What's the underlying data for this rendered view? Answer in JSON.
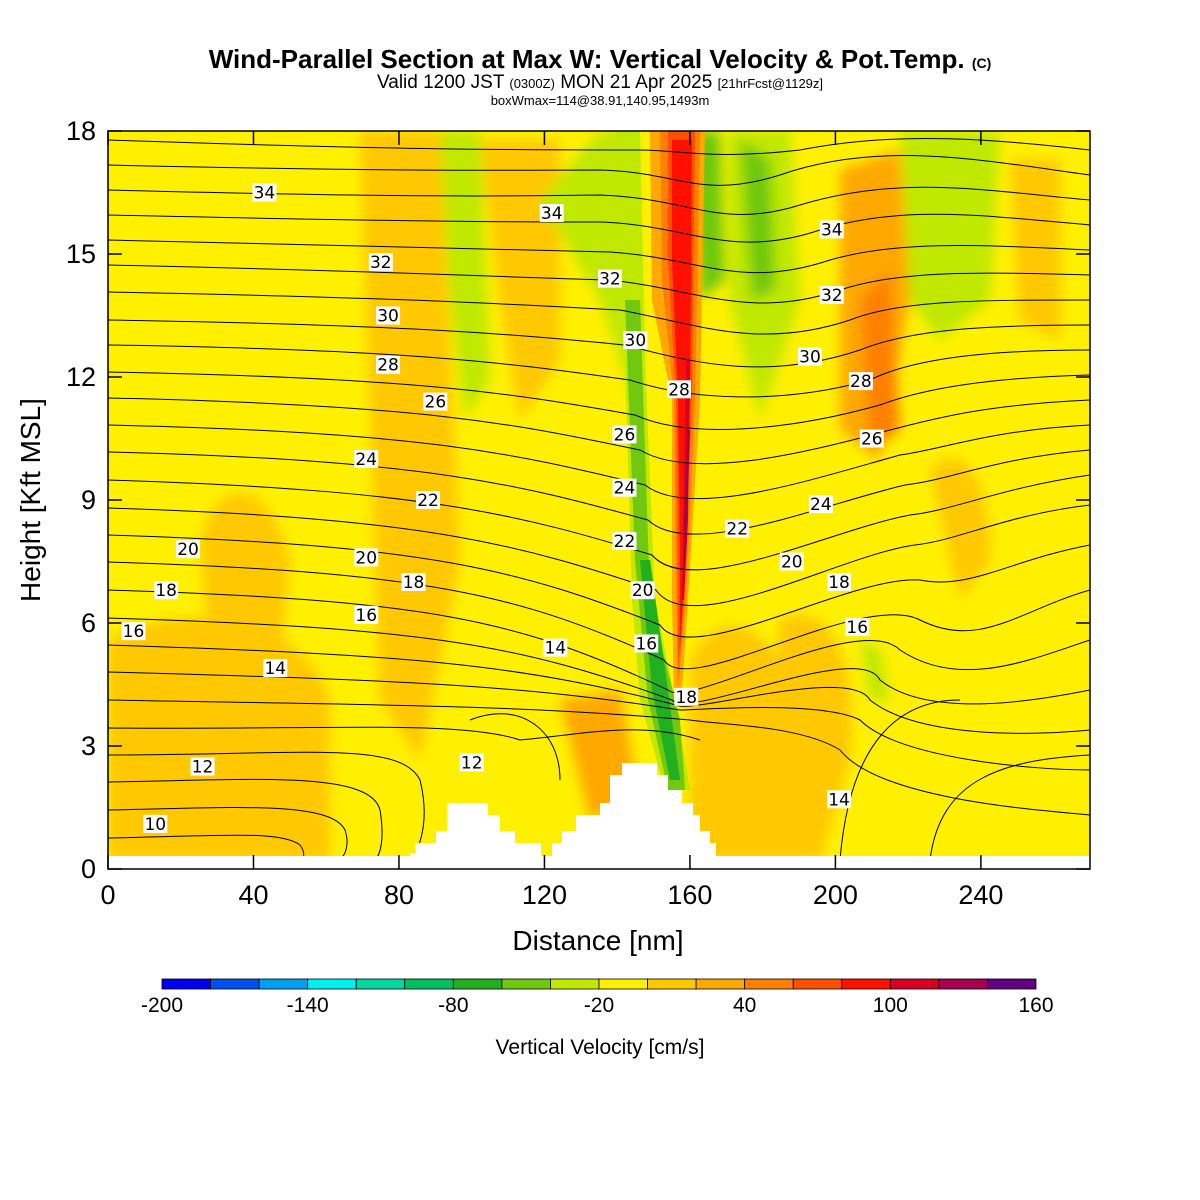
{
  "title": {
    "main": "Wind-Parallel Section at Max W: Vertical Velocity & Pot.Temp.",
    "main_tag": "(C)",
    "valid_prefix": "Valid 1200 JST",
    "valid_utc": "(0300Z)",
    "valid_date": "MON 21 Apr 2025",
    "forecast": "[21hrFcst@1129z]",
    "boxwmax": "boxWmax=114@38.91,140.95,1493m"
  },
  "chart_data": {
    "type": "heatmap",
    "xlabel": "Distance [nm]",
    "ylabel": "Height [Kft MSL]",
    "xlim": [
      0,
      270
    ],
    "ylim": [
      0,
      18
    ],
    "xticks": [
      0,
      40,
      80,
      120,
      160,
      200,
      240
    ],
    "yticks": [
      0,
      3,
      6,
      9,
      12,
      15,
      18
    ],
    "colorbar": {
      "label": "Vertical Velocity [cm/s]",
      "tick_labels": [
        -200,
        -140,
        -80,
        -20,
        40,
        100,
        160
      ],
      "bounds": [
        -200,
        -180,
        -160,
        -140,
        -120,
        -100,
        -80,
        -60,
        -40,
        -20,
        0,
        20,
        40,
        60,
        80,
        100,
        120,
        140,
        160
      ],
      "colors": [
        "#0000f0",
        "#0050f0",
        "#00a0f0",
        "#00f0f0",
        "#00d8a0",
        "#00c060",
        "#20b020",
        "#70c810",
        "#c0e800",
        "#fff000",
        "#ffc800",
        "#ffa800",
        "#ff8000",
        "#ff5000",
        "#ff1000",
        "#d80020",
        "#a80050",
        "#600080"
      ]
    },
    "features": {
      "updraft_core_max": 114,
      "updraft_core_x": 163,
      "downdraft_band_x": 153,
      "terrain_peaks_kft": [
        1.6,
        2.6
      ]
    },
    "theta_contour_labels": [
      {
        "text": "34",
        "x": 43,
        "y": 16.5
      },
      {
        "text": "34",
        "x": 122,
        "y": 16.0
      },
      {
        "text": "34",
        "x": 199,
        "y": 15.6
      },
      {
        "text": "32",
        "x": 75,
        "y": 14.8
      },
      {
        "text": "32",
        "x": 138,
        "y": 14.4
      },
      {
        "text": "32",
        "x": 199,
        "y": 14.0
      },
      {
        "text": "30",
        "x": 77,
        "y": 13.5
      },
      {
        "text": "30",
        "x": 145,
        "y": 12.9
      },
      {
        "text": "30",
        "x": 193,
        "y": 12.5
      },
      {
        "text": "28",
        "x": 77,
        "y": 12.3
      },
      {
        "text": "28",
        "x": 157,
        "y": 11.7
      },
      {
        "text": "28",
        "x": 207,
        "y": 11.9
      },
      {
        "text": "26",
        "x": 90,
        "y": 11.4
      },
      {
        "text": "26",
        "x": 142,
        "y": 10.6
      },
      {
        "text": "26",
        "x": 210,
        "y": 10.5
      },
      {
        "text": "24",
        "x": 71,
        "y": 10.0
      },
      {
        "text": "24",
        "x": 142,
        "y": 9.3
      },
      {
        "text": "24",
        "x": 196,
        "y": 8.9
      },
      {
        "text": "22",
        "x": 88,
        "y": 9.0
      },
      {
        "text": "22",
        "x": 142,
        "y": 8.0
      },
      {
        "text": "22",
        "x": 173,
        "y": 8.3
      },
      {
        "text": "20",
        "x": 22,
        "y": 7.8
      },
      {
        "text": "20",
        "x": 71,
        "y": 7.6
      },
      {
        "text": "20",
        "x": 147,
        "y": 6.8
      },
      {
        "text": "20",
        "x": 188,
        "y": 7.5
      },
      {
        "text": "18",
        "x": 16,
        "y": 6.8
      },
      {
        "text": "18",
        "x": 84,
        "y": 7.0
      },
      {
        "text": "18",
        "x": 159,
        "y": 4.2
      },
      {
        "text": "18",
        "x": 201,
        "y": 7.0
      },
      {
        "text": "16",
        "x": 7,
        "y": 5.8
      },
      {
        "text": "16",
        "x": 71,
        "y": 6.2
      },
      {
        "text": "16",
        "x": 148,
        "y": 5.5
      },
      {
        "text": "16",
        "x": 206,
        "y": 5.9
      },
      {
        "text": "14",
        "x": 46,
        "y": 4.9
      },
      {
        "text": "14",
        "x": 123,
        "y": 5.4
      },
      {
        "text": "14",
        "x": 201,
        "y": 1.7
      },
      {
        "text": "12",
        "x": 26,
        "y": 2.5
      },
      {
        "text": "12",
        "x": 100,
        "y": 2.6
      },
      {
        "text": "10",
        "x": 13,
        "y": 1.1
      }
    ]
  }
}
